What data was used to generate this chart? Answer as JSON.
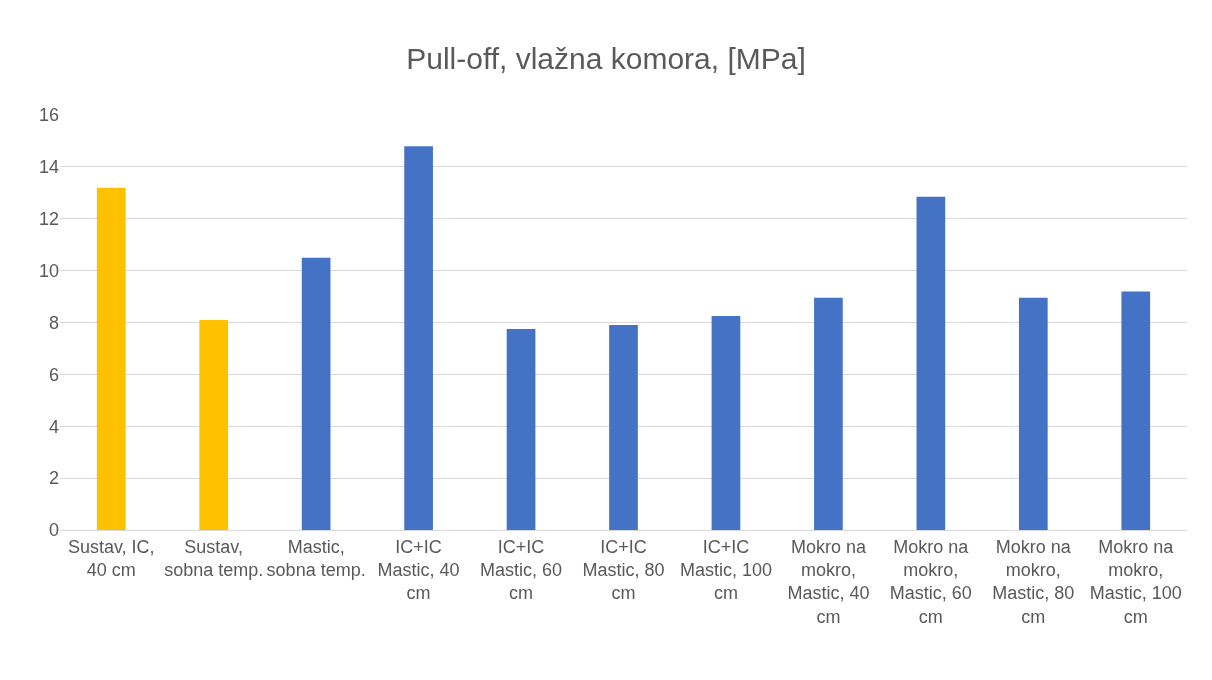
{
  "chart_data": {
    "type": "bar",
    "title": "Pull-off, vlažna komora, [MPa]",
    "categories": [
      "Sustav, IC, 40 cm",
      "Sustav, sobna temp.",
      "Mastic, sobna temp.",
      "IC+IC Mastic, 40 cm",
      "IC+IC Mastic, 60 cm",
      "IC+IC Mastic, 80 cm",
      "IC+IC Mastic, 100 cm",
      "Mokro na mokro, Mastic, 40 cm",
      "Mokro na mokro, Mastic, 60 cm",
      "Mokro na mokro, Mastic, 80 cm",
      "Mokro na mokro, Mastic, 100 cm"
    ],
    "values": [
      13.2,
      8.1,
      10.5,
      14.8,
      7.75,
      7.9,
      8.25,
      8.95,
      12.85,
      8.95,
      9.2
    ],
    "colors": [
      "#ffc000",
      "#ffc000",
      "#4472c4",
      "#4472c4",
      "#4472c4",
      "#4472c4",
      "#4472c4",
      "#4472c4",
      "#4472c4",
      "#4472c4",
      "#4472c4"
    ],
    "ylim": [
      0,
      16
    ],
    "yticks": [
      0,
      2,
      4,
      6,
      8,
      10,
      12,
      14,
      16
    ],
    "grid": "y"
  }
}
